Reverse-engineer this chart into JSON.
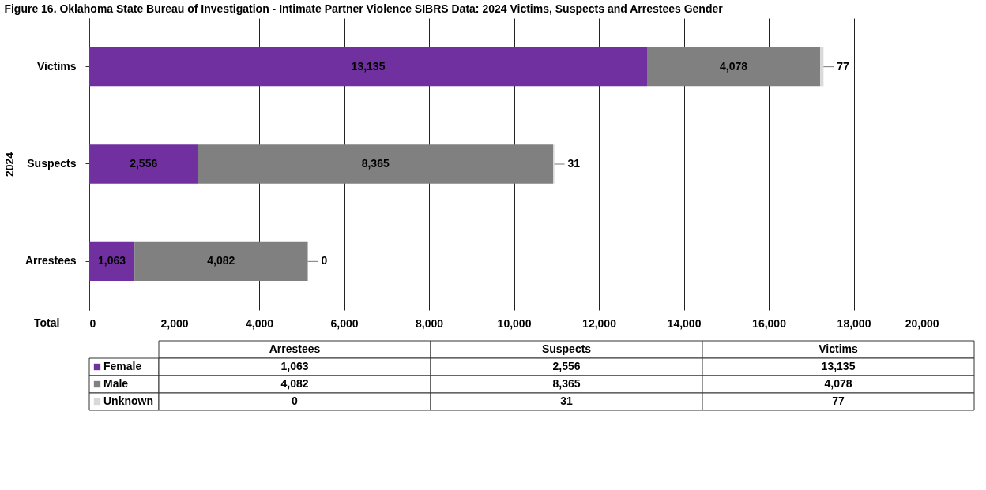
{
  "chart_data": {
    "type": "bar",
    "orientation": "horizontal",
    "stacked": true,
    "title": "Figure 16. Oklahoma State Bureau of Investigation - Intimate Partner Violence SIBRS Data: 2024 Victims, Suspects and Arrestees Gender",
    "ylabel": "2024",
    "annotations": [
      "Total"
    ],
    "categories": [
      "Victims",
      "Suspects",
      "Arrestees"
    ],
    "series": [
      {
        "name": "Female",
        "color": "#7030a0",
        "values": [
          13135,
          2556,
          1063
        ],
        "value_labels": [
          "13,135",
          "2,556",
          "1,063"
        ]
      },
      {
        "name": "Male",
        "color": "#808080",
        "values": [
          4078,
          8365,
          4082
        ],
        "value_labels": [
          "4,078",
          "8,365",
          "4,082"
        ]
      },
      {
        "name": "Unknown",
        "color": "#d9d9d9",
        "values": [
          77,
          31,
          0
        ],
        "value_labels": [
          "77",
          "31",
          "0"
        ]
      }
    ],
    "xlim": [
      0,
      20000
    ],
    "xticks": [
      0,
      {
        "value": 2000,
        "label": "2,000"
      },
      {
        "value": 4000,
        "label": "4,000"
      },
      {
        "value": 6000,
        "label": "6,000"
      },
      {
        "value": 8000,
        "label": "8,000"
      },
      {
        "value": 10000,
        "label": "10,000"
      },
      {
        "value": 12000,
        "label": "12,000"
      },
      {
        "value": 14000,
        "label": "14,000"
      },
      {
        "value": 16000,
        "label": "16,000"
      },
      {
        "value": 18000,
        "label": "18,000"
      },
      {
        "value": 20000,
        "label": "20,000"
      }
    ],
    "grid": "x",
    "legend": "bottom"
  }
}
